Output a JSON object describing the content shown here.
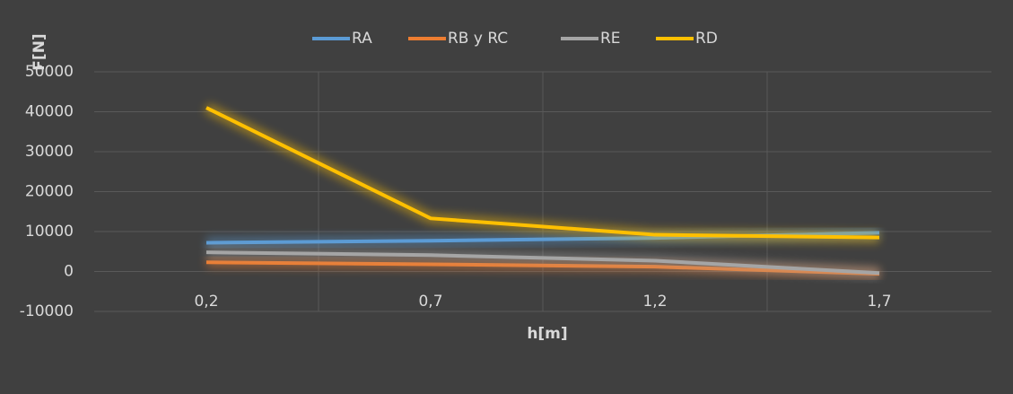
{
  "chart_data": {
    "type": "line",
    "x_label": "h[m]",
    "y_label": "F[N]",
    "categories": [
      "0,2",
      "0,7",
      "1,2",
      "1,7"
    ],
    "series": [
      {
        "name": "RA",
        "color": "#5b9bd5",
        "values": [
          7200,
          7700,
          8400,
          9700
        ]
      },
      {
        "name": "RB y RC",
        "color": "#ed7d31",
        "values": [
          2300,
          1800,
          1200,
          -600
        ]
      },
      {
        "name": "RE",
        "color": "#a5a5a5",
        "values": [
          4800,
          4100,
          2700,
          -400
        ]
      },
      {
        "name": "RD",
        "color": "#ffc000",
        "values": [
          41000,
          13300,
          9200,
          8500
        ]
      }
    ],
    "ylim": [
      -10000,
      50000
    ],
    "yticks": [
      -10000,
      0,
      10000,
      20000,
      30000,
      40000,
      50000
    ],
    "grid": true,
    "legend": "top"
  }
}
